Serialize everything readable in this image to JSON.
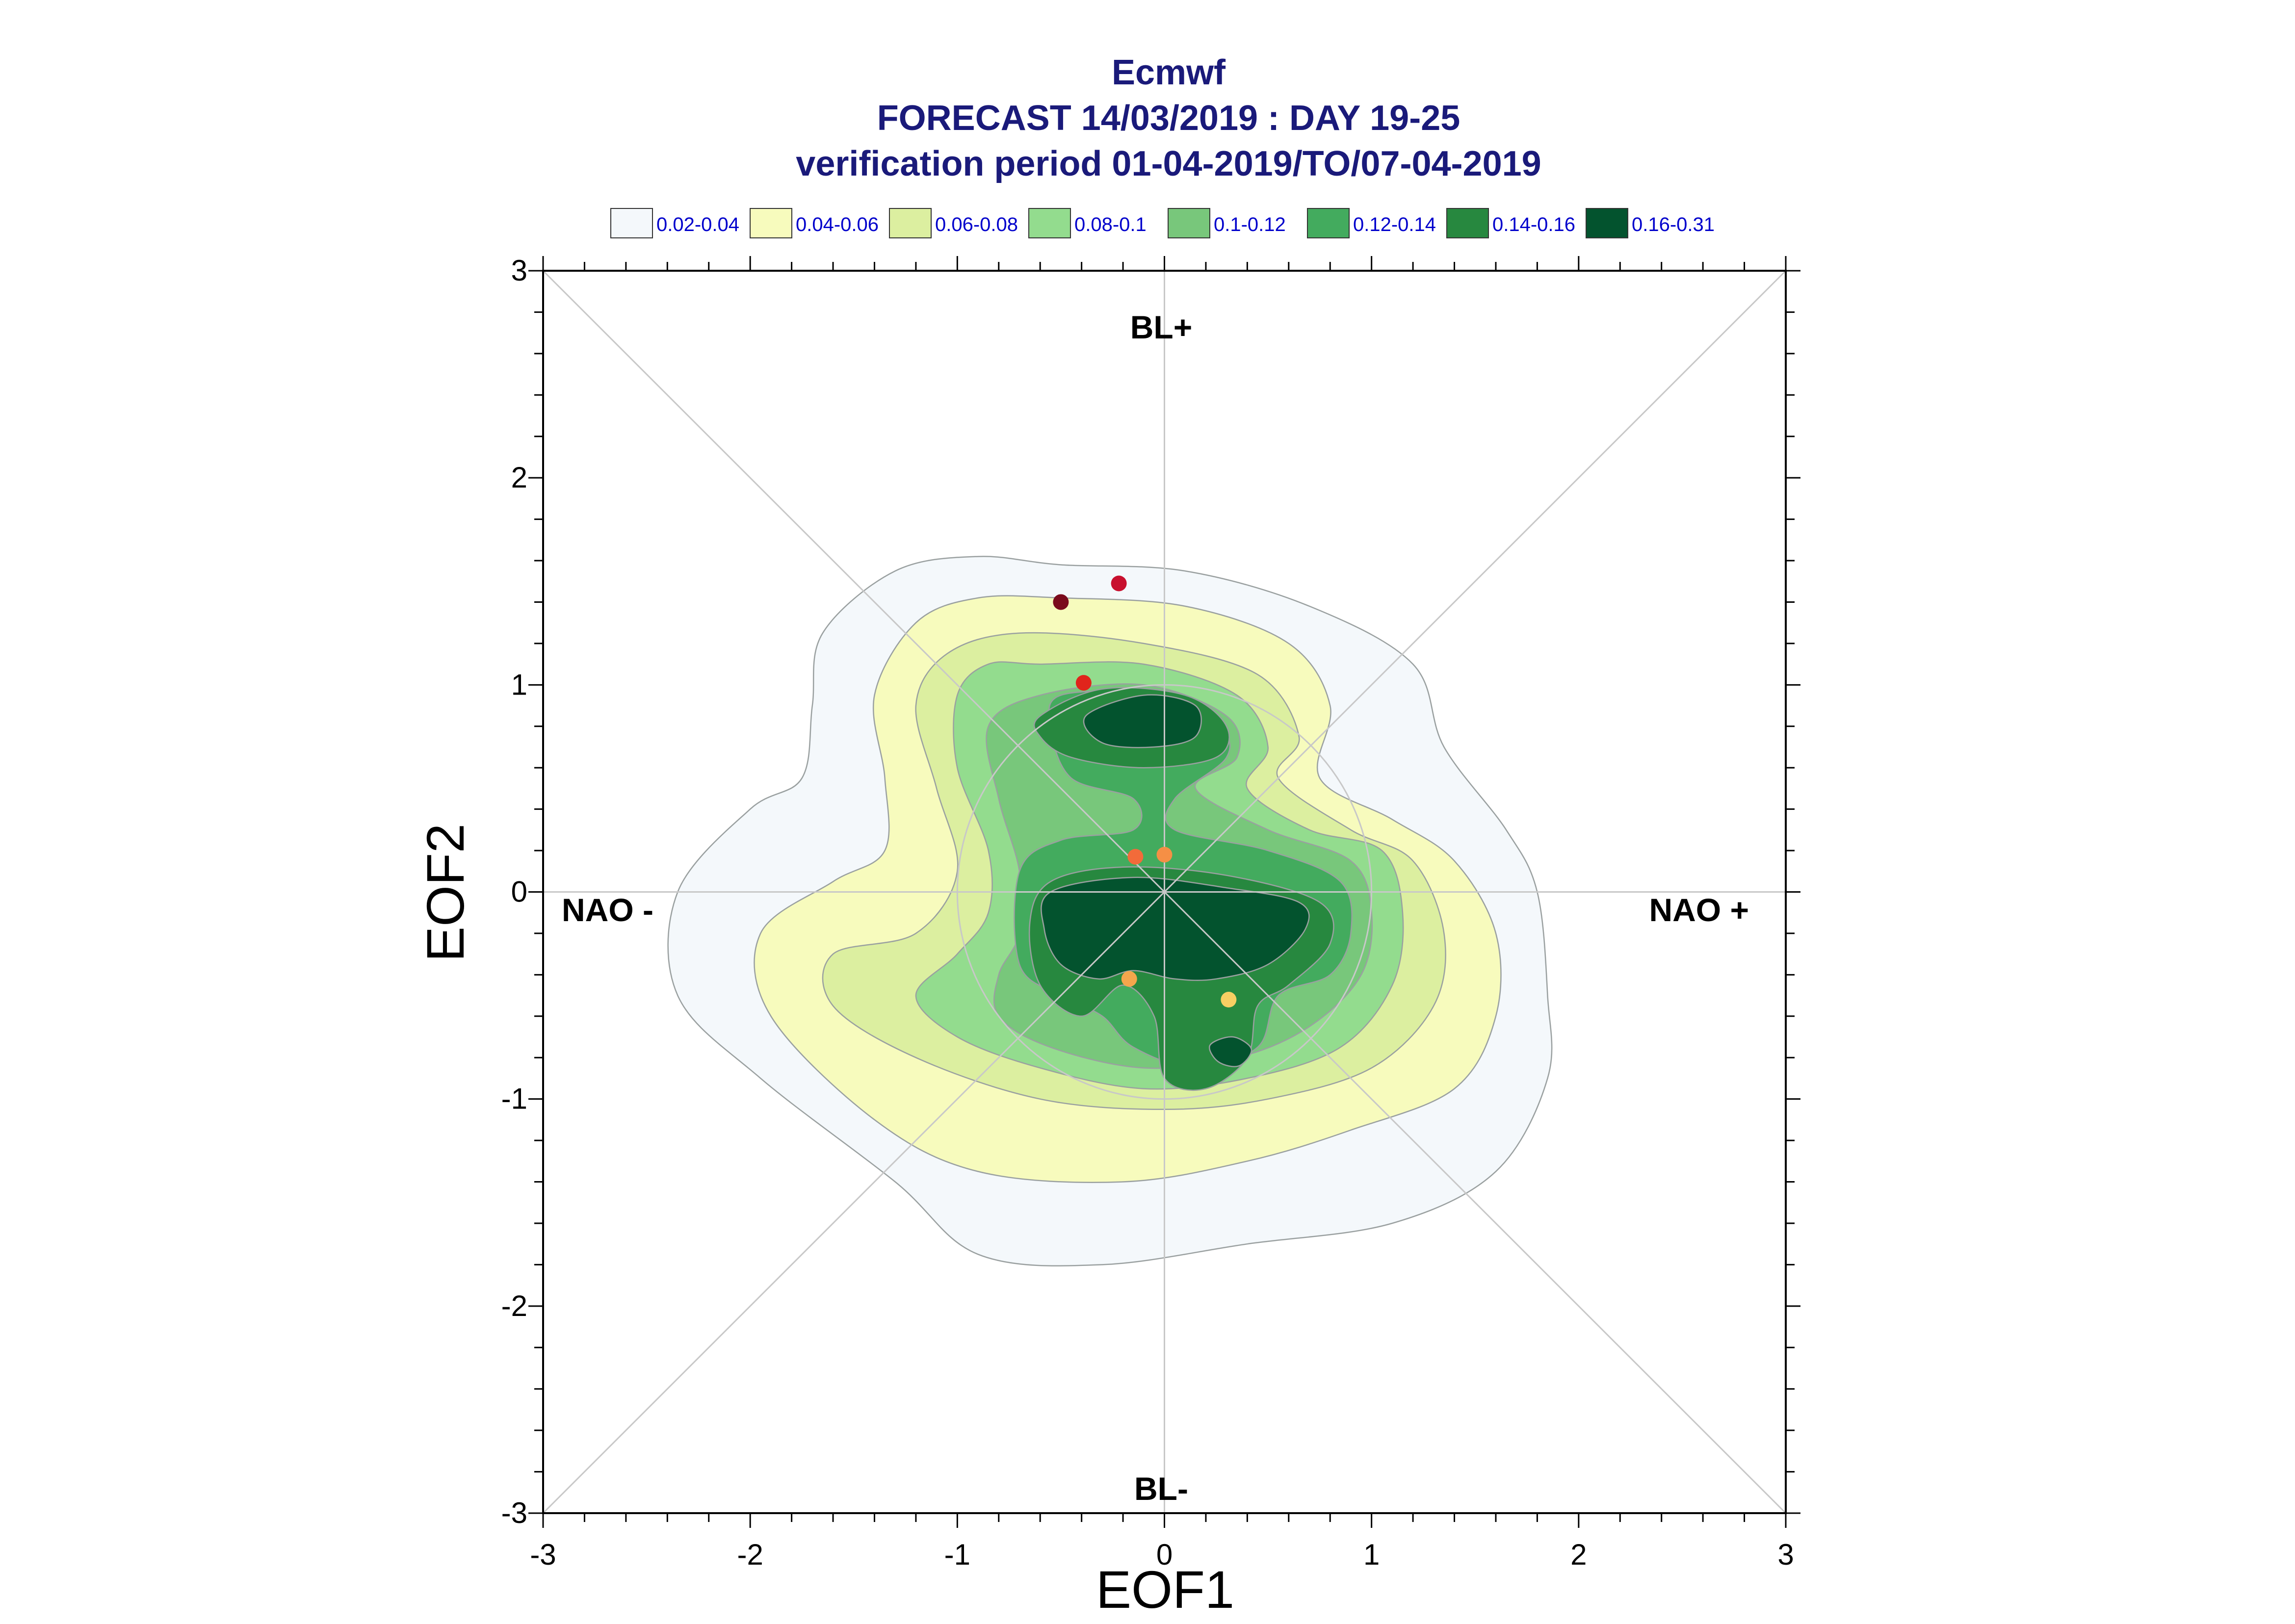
{
  "chart_data": {
    "type": "contour",
    "title": "Ecmwf",
    "subtitle_1": "FORECAST 14/03/2019 : DAY 19-25",
    "subtitle_2": "verification period 01-04-2019/TO/07-04-2019",
    "xlabel": "EOF1",
    "ylabel": "EOF2",
    "xlim": [
      -3,
      3
    ],
    "ylim": [
      -3,
      3
    ],
    "x_ticks": [
      "-3",
      "-2",
      "-1",
      "0",
      "1",
      "2",
      "3"
    ],
    "y_ticks": [
      "-3",
      "-2",
      "-1",
      "0",
      "1",
      "2",
      "3"
    ],
    "regime_labels": {
      "top": "BL+",
      "bottom": "BL-",
      "left": "NAO -",
      "right": "NAO +"
    },
    "legend": [
      {
        "label": "0.02-0.04",
        "color": "#f4f8fb"
      },
      {
        "label": "0.04-0.06",
        "color": "#f7fbbd"
      },
      {
        "label": "0.06-0.08",
        "color": "#dcefa0"
      },
      {
        "label": "0.08-0.1",
        "color": "#93dc8e"
      },
      {
        "label": "0.1-0.12",
        "color": "#78c77b"
      },
      {
        "label": "0.12-0.14",
        "color": "#43ab5e"
      },
      {
        "label": "0.14-0.16",
        "color": "#27883f"
      },
      {
        "label": "0.16-0.31",
        "color": "#03532e"
      }
    ],
    "members": [
      {
        "x": -0.5,
        "y": 1.4,
        "color": "#7a0b1c"
      },
      {
        "x": -0.22,
        "y": 1.49,
        "color": "#c8102e"
      },
      {
        "x": -0.39,
        "y": 1.01,
        "color": "#e0241c"
      },
      {
        "x": -0.14,
        "y": 0.17,
        "color": "#f26b3a"
      },
      {
        "x": 0.0,
        "y": 0.18,
        "color": "#f58f45"
      },
      {
        "x": -0.17,
        "y": -0.42,
        "color": "#f4a64c"
      },
      {
        "x": 0.31,
        "y": -0.52,
        "color": "#f7cf63"
      }
    ],
    "contours": [
      {
        "level": 0,
        "points": [
          [
            -0.5,
            1.58
          ],
          [
            0.1,
            1.55
          ],
          [
            0.7,
            1.38
          ],
          [
            1.2,
            1.1
          ],
          [
            1.35,
            0.7
          ],
          [
            1.65,
            0.3
          ],
          [
            1.8,
            0
          ],
          [
            1.85,
            -0.5
          ],
          [
            1.85,
            -0.9
          ],
          [
            1.6,
            -1.35
          ],
          [
            1.1,
            -1.6
          ],
          [
            0.4,
            -1.7
          ],
          [
            -0.3,
            -1.8
          ],
          [
            -0.9,
            -1.75
          ],
          [
            -1.3,
            -1.4
          ],
          [
            -1.95,
            -0.9
          ],
          [
            -2.35,
            -0.5
          ],
          [
            -2.35,
            0
          ],
          [
            -2.0,
            0.4
          ],
          [
            -1.75,
            0.55
          ],
          [
            -1.7,
            0.9
          ],
          [
            -1.65,
            1.25
          ],
          [
            -1.3,
            1.55
          ],
          [
            -0.9,
            1.62
          ]
        ]
      },
      {
        "level": 1,
        "points": [
          [
            -0.5,
            1.42
          ],
          [
            0.1,
            1.38
          ],
          [
            0.6,
            1.2
          ],
          [
            0.8,
            0.9
          ],
          [
            0.75,
            0.55
          ],
          [
            1.1,
            0.35
          ],
          [
            1.4,
            0.15
          ],
          [
            1.6,
            -0.2
          ],
          [
            1.6,
            -0.6
          ],
          [
            1.4,
            -0.95
          ],
          [
            0.9,
            -1.15
          ],
          [
            0.4,
            -1.3
          ],
          [
            -0.2,
            -1.4
          ],
          [
            -0.9,
            -1.35
          ],
          [
            -1.4,
            -1.1
          ],
          [
            -1.9,
            -0.6
          ],
          [
            -1.95,
            -0.2
          ],
          [
            -1.6,
            0.05
          ],
          [
            -1.35,
            0.2
          ],
          [
            -1.35,
            0.55
          ],
          [
            -1.4,
            0.95
          ],
          [
            -1.2,
            1.3
          ],
          [
            -0.9,
            1.42
          ]
        ]
      },
      {
        "level": 2,
        "points": [
          [
            -0.7,
            1.25
          ],
          [
            -0.1,
            1.2
          ],
          [
            0.45,
            1.05
          ],
          [
            0.65,
            0.75
          ],
          [
            0.55,
            0.55
          ],
          [
            0.9,
            0.3
          ],
          [
            1.2,
            0.15
          ],
          [
            1.35,
            -0.2
          ],
          [
            1.3,
            -0.55
          ],
          [
            1.0,
            -0.85
          ],
          [
            0.5,
            -1.0
          ],
          [
            0.0,
            -1.05
          ],
          [
            -0.6,
            -1.0
          ],
          [
            -1.2,
            -0.8
          ],
          [
            -1.6,
            -0.55
          ],
          [
            -1.6,
            -0.3
          ],
          [
            -1.2,
            -0.2
          ],
          [
            -1.0,
            0.1
          ],
          [
            -1.1,
            0.5
          ],
          [
            -1.2,
            0.9
          ],
          [
            -1.05,
            1.15
          ]
        ]
      },
      {
        "level": 3,
        "points": [
          [
            -0.6,
            1.1
          ],
          [
            -0.1,
            1.1
          ],
          [
            0.35,
            0.95
          ],
          [
            0.5,
            0.7
          ],
          [
            0.4,
            0.5
          ],
          [
            0.7,
            0.3
          ],
          [
            1.05,
            0.2
          ],
          [
            1.15,
            -0.1
          ],
          [
            1.1,
            -0.45
          ],
          [
            0.85,
            -0.75
          ],
          [
            0.4,
            -0.9
          ],
          [
            -0.1,
            -0.95
          ],
          [
            -0.6,
            -0.85
          ],
          [
            -1.0,
            -0.7
          ],
          [
            -1.2,
            -0.5
          ],
          [
            -1.0,
            -0.3
          ],
          [
            -0.85,
            -0.1
          ],
          [
            -0.85,
            0.2
          ],
          [
            -1.0,
            0.6
          ],
          [
            -1.0,
            0.95
          ],
          [
            -0.85,
            1.1
          ]
        ]
      },
      {
        "level": 4,
        "points": [
          [
            -0.6,
            0.95
          ],
          [
            -0.1,
            1.0
          ],
          [
            0.3,
            0.85
          ],
          [
            0.35,
            0.65
          ],
          [
            0.15,
            0.5
          ],
          [
            0.5,
            0.3
          ],
          [
            0.9,
            0.15
          ],
          [
            1.0,
            -0.1
          ],
          [
            0.95,
            -0.4
          ],
          [
            0.7,
            -0.65
          ],
          [
            0.35,
            -0.8
          ],
          [
            -0.1,
            -0.85
          ],
          [
            -0.55,
            -0.75
          ],
          [
            -0.8,
            -0.6
          ],
          [
            -0.8,
            -0.4
          ],
          [
            -0.7,
            -0.2
          ],
          [
            -0.7,
            0.1
          ],
          [
            -0.8,
            0.45
          ],
          [
            -0.85,
            0.8
          ]
        ]
      },
      {
        "level": 5,
        "points": [
          [
            -0.5,
            0.95
          ],
          [
            -0.1,
            0.95
          ],
          [
            0.25,
            0.8
          ],
          [
            0.3,
            0.65
          ],
          [
            0.05,
            0.45
          ],
          [
            0.05,
            0.3
          ],
          [
            0.5,
            0.2
          ],
          [
            0.85,
            0.05
          ],
          [
            0.9,
            -0.2
          ],
          [
            0.8,
            -0.4
          ],
          [
            0.55,
            -0.5
          ],
          [
            0.45,
            -0.75
          ],
          [
            0.15,
            -0.85
          ],
          [
            -0.15,
            -0.75
          ],
          [
            -0.3,
            -0.6
          ],
          [
            -0.5,
            -0.5
          ],
          [
            -0.7,
            -0.35
          ],
          [
            -0.7,
            0.1
          ],
          [
            -0.5,
            0.25
          ],
          [
            -0.15,
            0.3
          ],
          [
            -0.15,
            0.45
          ],
          [
            -0.45,
            0.55
          ],
          [
            -0.55,
            0.8
          ]
        ]
      },
      {
        "level": 6,
        "points": [
          [
            -0.6,
            0.85
          ],
          [
            -0.3,
            0.98
          ],
          [
            0.1,
            0.95
          ],
          [
            0.3,
            0.8
          ],
          [
            0.25,
            0.65
          ],
          [
            -0.1,
            0.6
          ],
          [
            -0.45,
            0.65
          ],
          [
            -0.6,
            0.75
          ]
        ]
      },
      {
        "level": 6,
        "points": [
          [
            -0.55,
            0.05
          ],
          [
            -0.2,
            0.12
          ],
          [
            0.3,
            0.08
          ],
          [
            0.75,
            -0.05
          ],
          [
            0.8,
            -0.25
          ],
          [
            0.6,
            -0.45
          ],
          [
            0.45,
            -0.55
          ],
          [
            0.4,
            -0.8
          ],
          [
            0.2,
            -0.95
          ],
          [
            0.0,
            -0.9
          ],
          [
            -0.05,
            -0.6
          ],
          [
            -0.2,
            -0.45
          ],
          [
            -0.4,
            -0.6
          ],
          [
            -0.6,
            -0.45
          ],
          [
            -0.65,
            -0.15
          ]
        ]
      },
      {
        "level": 7,
        "points": [
          [
            -0.38,
            0.85
          ],
          [
            -0.1,
            0.95
          ],
          [
            0.15,
            0.9
          ],
          [
            0.15,
            0.75
          ],
          [
            -0.05,
            0.7
          ],
          [
            -0.3,
            0.72
          ]
        ]
      },
      {
        "level": 7,
        "points": [
          [
            -0.55,
            0.0
          ],
          [
            -0.15,
            0.07
          ],
          [
            0.3,
            0.02
          ],
          [
            0.65,
            -0.05
          ],
          [
            0.68,
            -0.18
          ],
          [
            0.5,
            -0.35
          ],
          [
            0.25,
            -0.42
          ],
          [
            0.05,
            -0.42
          ],
          [
            -0.15,
            -0.38
          ],
          [
            -0.32,
            -0.42
          ],
          [
            -0.5,
            -0.35
          ],
          [
            -0.58,
            -0.18
          ]
        ]
      },
      {
        "level": 7,
        "points": [
          [
            0.22,
            -0.74
          ],
          [
            0.33,
            -0.7
          ],
          [
            0.42,
            -0.76
          ],
          [
            0.36,
            -0.84
          ],
          [
            0.26,
            -0.82
          ]
        ]
      }
    ]
  }
}
